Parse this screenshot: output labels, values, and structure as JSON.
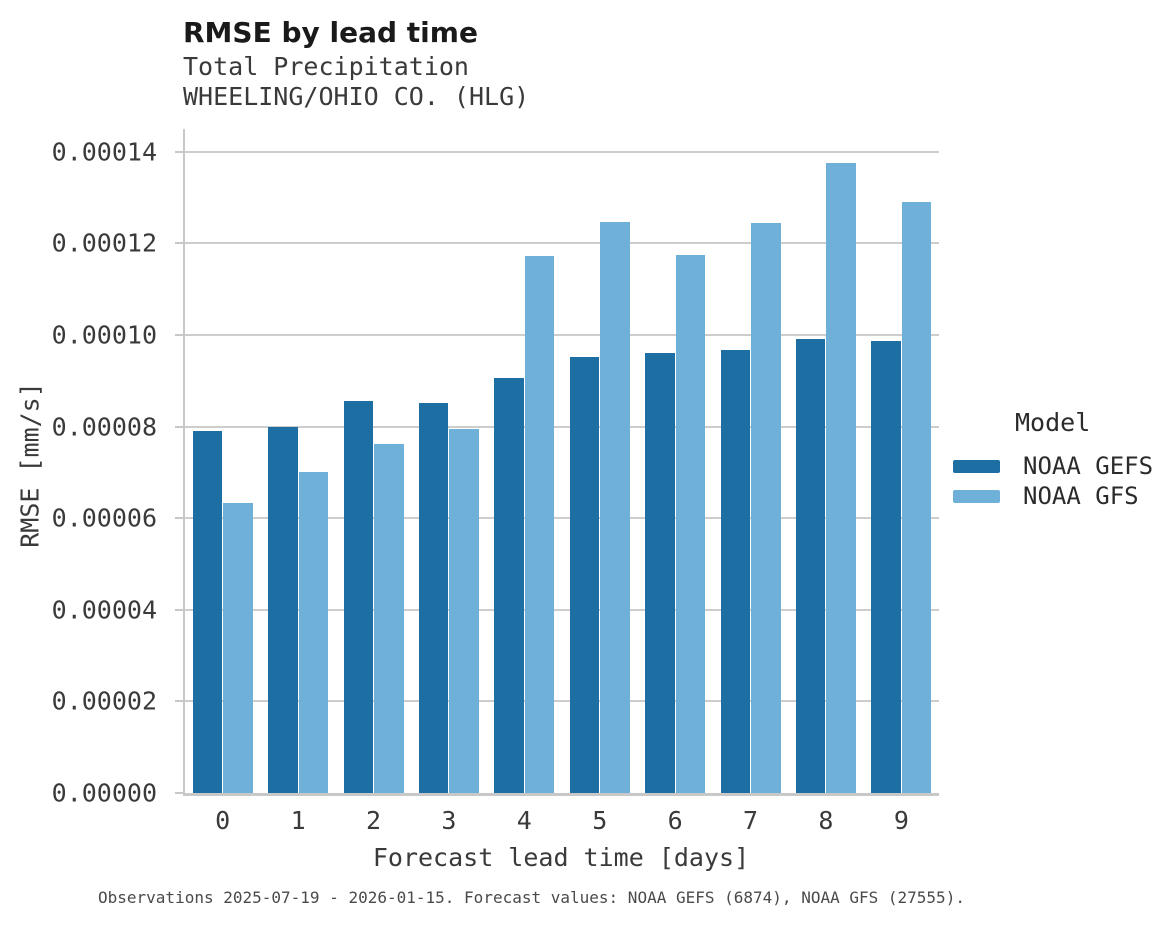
{
  "header": {
    "title": "RMSE by lead time",
    "subtitle_line1": "Total Precipitation",
    "subtitle_line2": "WHEELING/OHIO CO. (HLG)"
  },
  "legend": {
    "title": "Model",
    "items": [
      {
        "label": "NOAA GEFS",
        "color": "#1d6fa3"
      },
      {
        "label": "NOAA GFS",
        "color": "#6fb0d9"
      }
    ]
  },
  "caption": "Observations 2025-07-19 - 2026-01-15. Forecast values: NOAA GEFS (6874), NOAA GFS (27555).",
  "chart_data": {
    "type": "bar",
    "title": "RMSE by lead time",
    "subtitle": [
      "Total Precipitation",
      "WHEELING/OHIO CO. (HLG)"
    ],
    "xlabel": "Forecast lead time [days]",
    "ylabel": "RMSE [mm/s]",
    "categories": [
      "0",
      "1",
      "2",
      "3",
      "4",
      "5",
      "6",
      "7",
      "8",
      "9"
    ],
    "series": [
      {
        "name": "NOAA GEFS",
        "color": "#1d6fa3",
        "values": [
          7.9e-05,
          8e-05,
          8.57e-05,
          8.51e-05,
          9.06e-05,
          9.53e-05,
          9.6e-05,
          9.68e-05,
          9.91e-05,
          9.88e-05
        ]
      },
      {
        "name": "NOAA GFS",
        "color": "#6fb0d9",
        "values": [
          6.34e-05,
          7.01e-05,
          7.63e-05,
          7.95e-05,
          0.0001172,
          0.0001248,
          0.0001174,
          0.0001244,
          0.0001376,
          0.0001291
        ]
      }
    ],
    "ylim": [
      0,
      0.000145
    ],
    "yticks": {
      "values": [
        0.0,
        2e-05,
        4e-05,
        6e-05,
        8e-05,
        0.0001,
        0.00012,
        0.00014
      ],
      "labels": [
        "0.00000",
        "0.00002",
        "0.00004",
        "0.00006",
        "0.00008",
        "0.00010",
        "0.00012",
        "0.00014"
      ]
    },
    "grid": "horizontal",
    "legend_position": "right",
    "legend_title": "Model"
  }
}
